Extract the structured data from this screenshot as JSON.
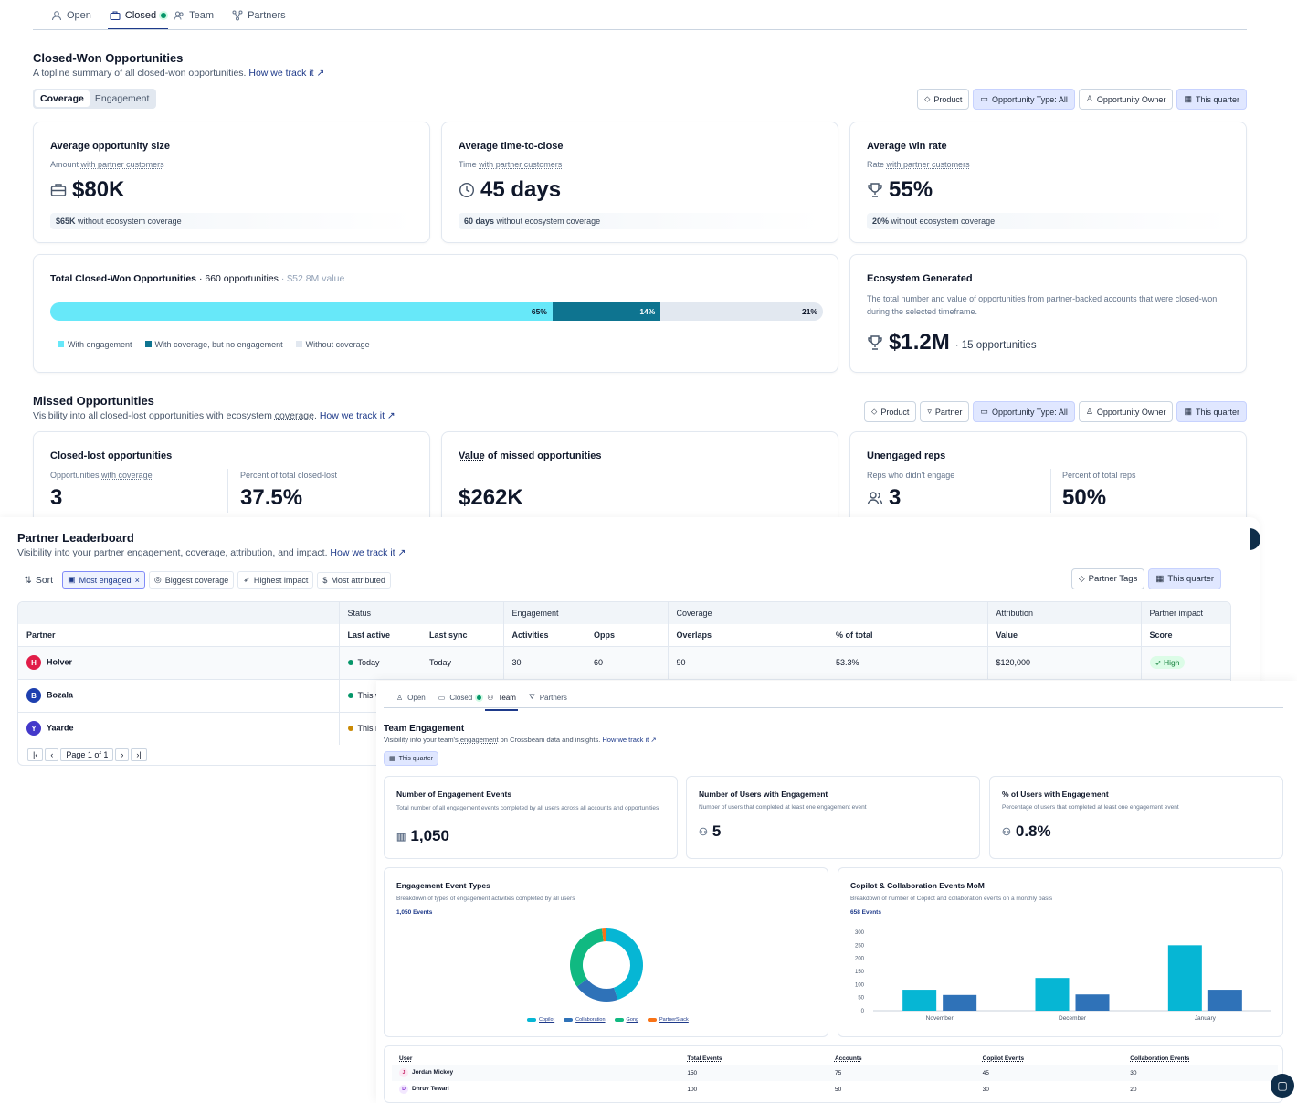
{
  "top_tabs": [
    "Open",
    "Closed",
    "Team",
    "Partners"
  ],
  "closed_won": {
    "title": "Closed-Won Opportunities",
    "subtitle": "A topline summary of all closed-won opportunities.",
    "link": "How we track it ↗",
    "toggle": [
      "Coverage",
      "Engagement"
    ],
    "filters": [
      "Product",
      "Opportunity Type: All",
      "Opportunity Owner",
      "This quarter"
    ],
    "metrics": [
      {
        "title": "Average opportunity size",
        "sub_prefix": "Amount",
        "sub_link": "with partner customers",
        "value": "$80K",
        "foot_bold": "$65K",
        "foot_rest": "without ecosystem coverage",
        "icon": "briefcase-icon"
      },
      {
        "title": "Average time-to-close",
        "sub_prefix": "Time",
        "sub_link": "with partner customers",
        "value": "45 days",
        "foot_bold": "60 days",
        "foot_rest": "without ecosystem coverage",
        "icon": "clock-icon"
      },
      {
        "title": "Average win rate",
        "sub_prefix": "Rate",
        "sub_link": "with partner customers",
        "value": "55%",
        "foot_bold": "20%",
        "foot_rest": "without ecosystem coverage",
        "icon": "trophy-icon"
      }
    ],
    "total": {
      "title": "Total Closed-Won Opportunities",
      "count": "· 660 opportunities",
      "value": "· $52.8M value",
      "segments": [
        {
          "label": "65%",
          "pct": 65,
          "color": "#67e8f9"
        },
        {
          "label": "14%",
          "pct": 14,
          "color": "#0e7490"
        },
        {
          "label": "21%",
          "pct": 21,
          "color": "#e2e8f0"
        }
      ],
      "legend": [
        "With engagement",
        "With coverage, but no engagement",
        "Without coverage"
      ]
    },
    "eco": {
      "title": "Ecosystem Generated",
      "desc": "The total number and value of opportunities from partner-backed accounts that were closed-won during the selected timeframe.",
      "value": "$1.2M",
      "count": "· 15 opportunities"
    }
  },
  "missed": {
    "title": "Missed Opportunities",
    "subtitle_a": "Visibility into all closed-lost opportunities with ecosystem",
    "subtitle_u": "coverage",
    "link": "How we track it ↗",
    "filters": [
      "Product",
      "Partner",
      "Opportunity Type: All",
      "Opportunity Owner",
      "This quarter"
    ],
    "c1": {
      "title": "Closed-lost opportunities",
      "l_sub_a": "Opportunities",
      "l_sub_u": "with coverage",
      "l_val": "3",
      "r_sub": "Percent of total closed-lost",
      "r_val": "37.5%"
    },
    "c2": {
      "title_u": "Value",
      "title_rest": "of missed opportunities",
      "val": "$262K"
    },
    "c3": {
      "title": "Unengaged reps",
      "l_sub": "Reps who didn't engage",
      "l_val": "3",
      "r_sub": "Percent of total reps",
      "r_val": "50%"
    }
  },
  "leaderboard": {
    "title": "Partner Leaderboard",
    "subtitle": "Visibility into your partner engagement, coverage, attribution, and impact.",
    "link": "How we track it ↗",
    "sort": "Sort",
    "chips": [
      "Most engaged",
      "Biggest coverage",
      "Highest impact",
      "Most attributed"
    ],
    "right": [
      "Partner Tags",
      "This quarter"
    ],
    "groups": [
      "Status",
      "Engagement",
      "Coverage",
      "Attribution",
      "Partner impact"
    ],
    "cols": [
      "Partner",
      "Last active",
      "Last sync",
      "Activities",
      "Opps",
      "Overlaps",
      "% of total",
      "Value",
      "Score"
    ],
    "rows": [
      {
        "name": "Holver",
        "last_active": "Today",
        "last_sync": "Today",
        "activities": "30",
        "opps": "60",
        "overlaps": "90",
        "pct": "53.3%",
        "value": "$120,000",
        "score": "High",
        "color": "#e11d48",
        "status": "#059669"
      },
      {
        "name": "Bozala",
        "last_active": "This w",
        "status": "#059669",
        "color": "#1e40af"
      },
      {
        "name": "Yaarde",
        "last_active": "This r",
        "status": "#ca8a04",
        "color": "#4338ca"
      }
    ],
    "pager": "Page 1 of 1"
  },
  "team": {
    "tabs": [
      "Open",
      "Closed",
      "Team",
      "Partners"
    ],
    "title": "Team Engagement",
    "subtitle_a": "Visibility into your team's",
    "subtitle_u": "engagement",
    "subtitle_b": "on Crossbeam data and insights.",
    "link": "How we track it ↗",
    "quarter": "This quarter",
    "metrics": [
      {
        "title": "Number of Engagement Events",
        "sub": "Total number of all engagement events completed by all users across all accounts and opportunities",
        "val": "1,050"
      },
      {
        "title": "Number of Users with Engagement",
        "sub": "Number of users that completed at least one engagement event",
        "val": "5"
      },
      {
        "title": "% of Users with Engagement",
        "sub": "Percentage of users that completed at least one engagement event",
        "val": "0.8%"
      }
    ],
    "donut_card": {
      "title": "Engagement Event Types",
      "sub": "Breakdown of types of engagement activities completed by all users",
      "total": "1,050 Events"
    },
    "bar_card": {
      "title": "Copilot & Collaboration Events MoM",
      "sub": "Breakdown of number of Copilot and collaboration events on a monthly basis",
      "total": "658 Events"
    },
    "table_cols": [
      "User",
      "Total Events",
      "Accounts",
      "Copilot Events",
      "Collaboration Events"
    ],
    "table_rows": [
      {
        "initial": "J",
        "user": "Jordan Mickey",
        "total": "150",
        "accounts": "75",
        "copilot": "45",
        "collab": "30"
      },
      {
        "initial": "D",
        "user": "Dhruv Tewari",
        "total": "100",
        "accounts": "50",
        "copilot": "30",
        "collab": "20"
      }
    ]
  },
  "chart_data": [
    {
      "type": "pie",
      "title": "Engagement Event Types",
      "categories": [
        "Copilot",
        "Collaboration",
        "Gong",
        "PartnerStack"
      ],
      "values": [
        45,
        20,
        33,
        2
      ],
      "colors": [
        "#06b6d4",
        "#2f72b8",
        "#10b981",
        "#f97316"
      ]
    },
    {
      "type": "bar",
      "title": "Copilot & Collaboration Events MoM",
      "categories": [
        "November",
        "December",
        "January"
      ],
      "series": [
        {
          "name": "Copilot",
          "values": [
            80,
            125,
            250
          ],
          "color": "#06b6d4"
        },
        {
          "name": "Collaboration",
          "values": [
            60,
            62,
            80
          ],
          "color": "#2f72b8"
        }
      ],
      "yticks": [
        "300",
        "250",
        "200",
        "150",
        "100",
        "50",
        "0"
      ],
      "ylim": [
        0,
        300
      ]
    }
  ]
}
